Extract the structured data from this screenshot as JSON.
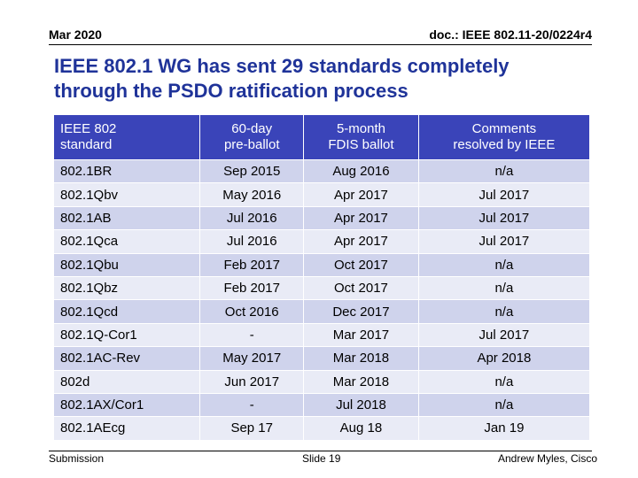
{
  "header": {
    "date": "Mar 2020",
    "doc": "doc.: IEEE 802.11-20/0224r4"
  },
  "slide": {
    "title_line1": "IEEE 802.1 WG has sent 29 standards completely",
    "title_line2": "through the PSDO ratification process"
  },
  "table": {
    "headers": [
      [
        "IEEE 802",
        "standard"
      ],
      [
        "60-day",
        "pre-ballot"
      ],
      [
        "5-month",
        "FDIS ballot"
      ],
      [
        "Comments",
        "resolved by IEEE"
      ]
    ],
    "rows": [
      [
        "802.1BR",
        "Sep 2015",
        "Aug 2016",
        "n/a"
      ],
      [
        "802.1Qbv",
        "May 2016",
        "Apr 2017",
        "Jul 2017"
      ],
      [
        "802.1AB",
        "Jul 2016",
        "Apr 2017",
        "Jul 2017"
      ],
      [
        "802.1Qca",
        "Jul 2016",
        "Apr 2017",
        "Jul 2017"
      ],
      [
        "802.1Qbu",
        "Feb 2017",
        "Oct 2017",
        "n/a"
      ],
      [
        "802.1Qbz",
        "Feb 2017",
        "Oct 2017",
        "n/a"
      ],
      [
        "802.1Qcd",
        "Oct 2016",
        "Dec 2017",
        "n/a"
      ],
      [
        "802.1Q-Cor1",
        "-",
        "Mar 2017",
        "Jul 2017"
      ],
      [
        "802.1AC-Rev",
        "May 2017",
        "Mar 2018",
        "Apr 2018"
      ],
      [
        "802d",
        "Jun 2017",
        "Mar 2018",
        "n/a"
      ],
      [
        "802.1AX/Cor1",
        "-",
        "Jul 2018",
        "n/a"
      ],
      [
        "802.1AEcg",
        "Sep 17",
        "Aug 18",
        "Jan 19"
      ]
    ]
  },
  "footer": {
    "left": "Submission",
    "center": "Slide 19",
    "right": "Andrew Myles, Cisco"
  }
}
